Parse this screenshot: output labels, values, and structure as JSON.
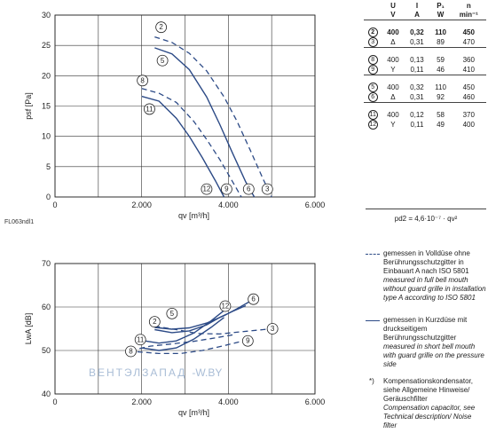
{
  "figure_code": "FL063ndl1",
  "watermark": {
    "name": "ВЕНТЭЛЗАПАД",
    "suffix": "-W.BY"
  },
  "table": {
    "headers": [
      "U",
      "I",
      "P₁",
      "n"
    ],
    "units": [
      "V",
      "A",
      "W",
      "min⁻¹"
    ],
    "groups": [
      [
        {
          "id": "2",
          "u": "400",
          "i": "0,32",
          "p": "110",
          "n": "450",
          "bold": true
        },
        {
          "id": "3",
          "u": "Δ",
          "i": "0,31",
          "p": "89",
          "n": "470",
          "bold": false
        }
      ],
      [
        {
          "id": "8",
          "u": "400",
          "i": "0,13",
          "p": "59",
          "n": "360",
          "bold": false
        },
        {
          "id": "9",
          "u": "Y",
          "i": "0,11",
          "p": "46",
          "n": "410",
          "bold": false
        }
      ],
      [
        {
          "id": "5",
          "u": "400",
          "i": "0,32",
          "p": "110",
          "n": "450",
          "bold": false
        },
        {
          "id": "6",
          "u": "Δ",
          "i": "0,31",
          "p": "92",
          "n": "460",
          "bold": false
        }
      ],
      [
        {
          "id": "11",
          "u": "400",
          "i": "0,12",
          "p": "58",
          "n": "370",
          "bold": false
        },
        {
          "id": "12",
          "u": "Y",
          "i": "0,11",
          "p": "49",
          "n": "400",
          "bold": false
        }
      ]
    ],
    "formula": "pd2 = 4,6·10⁻⁷ · qv²"
  },
  "legend": {
    "dashed": {
      "de": "gemessen in Volldüse ohne Berührungsschutzgitter in Einbauart A nach ISO 5801",
      "en": "measured in full bell mouth without guard grille in installation type A according to ISO 5801"
    },
    "solid": {
      "de": "gemessen in Kurzdüse mit druckseitigem Berührungsschutzgitter",
      "en": "measured in short bell mouth with guard grille on the pressure side"
    },
    "note": {
      "mark": "*)",
      "de": "Kompensationskondensator, siehe Allgemeine Hinweise/ Geräuschfilter",
      "en": "Compensation capacitor, see Technical description/ Noise filter"
    }
  },
  "chart_data": [
    {
      "type": "line",
      "xlabel": "qv [m³/h]",
      "ylabel": "psf [Pa]",
      "xlim": [
        0,
        6000
      ],
      "ylim": [
        0,
        30
      ],
      "xticks": [
        0,
        2000,
        4000,
        6000
      ],
      "xtick_labels": [
        "0",
        "2.000",
        "4.000",
        "6.000"
      ],
      "yticks": [
        0,
        5,
        10,
        15,
        20,
        25,
        30
      ],
      "grid": true,
      "series": [
        {
          "name": "2",
          "style": "dashed",
          "label_at": [
            2450,
            28
          ],
          "x": [
            2300,
            2700,
            3100,
            3500,
            3900,
            4200,
            4500,
            4800,
            5000
          ],
          "y": [
            26.4,
            25.5,
            23.7,
            20.8,
            16.5,
            12.5,
            7.8,
            3.0,
            0
          ]
        },
        {
          "name": "5",
          "style": "solid",
          "label_at": [
            2480,
            22.5
          ],
          "x": [
            2300,
            2700,
            3100,
            3500,
            3800,
            4100,
            4400,
            4600
          ],
          "y": [
            24.6,
            23.6,
            21.0,
            16.5,
            12.0,
            7.2,
            2.5,
            0
          ]
        },
        {
          "name": "8",
          "style": "dashed",
          "label_at": [
            2020,
            19.2
          ],
          "x": [
            2000,
            2400,
            2800,
            3200,
            3500,
            3800,
            4100,
            4300
          ],
          "y": [
            17.9,
            17.1,
            15.6,
            12.5,
            9.5,
            6.2,
            2.5,
            0
          ]
        },
        {
          "name": "11",
          "style": "solid",
          "label_at": [
            2180,
            14.5
          ],
          "x": [
            2000,
            2400,
            2800,
            3100,
            3400,
            3700,
            3900
          ],
          "y": [
            16.6,
            15.8,
            13.0,
            10.0,
            6.5,
            2.7,
            0
          ]
        },
        {
          "name": "3",
          "style": "endpoint",
          "label_at": [
            4900,
            1.3
          ]
        },
        {
          "name": "6",
          "style": "endpoint",
          "label_at": [
            4470,
            1.3
          ]
        },
        {
          "name": "9",
          "style": "endpoint",
          "label_at": [
            3960,
            1.3
          ]
        },
        {
          "name": "12",
          "style": "endpoint",
          "label_at": [
            3500,
            1.3
          ]
        }
      ]
    },
    {
      "type": "line",
      "xlabel": "qv [m³/h]",
      "ylabel": "LwA [dB]",
      "xlim": [
        0,
        6000
      ],
      "ylim": [
        40,
        70
      ],
      "xticks": [
        0,
        2000,
        4000,
        6000
      ],
      "xtick_labels": [
        "0",
        "2.000",
        "4.000",
        "6.000"
      ],
      "yticks": [
        40,
        50,
        60,
        70
      ],
      "grid": true,
      "series": [
        {
          "name": "6",
          "style": "solid",
          "label_at": [
            4580,
            61.8
          ],
          "x": [
            2300,
            2700,
            3100,
            3500,
            3900,
            4200,
            4500
          ],
          "y": [
            55.3,
            54.9,
            55.2,
            56.3,
            58.0,
            59.6,
            61.3
          ]
        },
        {
          "name": "5",
          "style": "solid",
          "label_at": [
            2700,
            58.5
          ],
          "x": [
            2300,
            2700,
            3100,
            3500,
            3800,
            4100,
            4400
          ],
          "y": [
            54.8,
            54.1,
            54.5,
            55.9,
            57.6,
            59.0,
            60.3
          ]
        },
        {
          "name": "12",
          "style": "solid",
          "label_at": [
            3930,
            60.2
          ],
          "x": [
            2000,
            2400,
            2800,
            3200,
            3600,
            3900
          ],
          "y": [
            52.3,
            51.7,
            52.2,
            54.0,
            56.8,
            59.2
          ]
        },
        {
          "name": "11",
          "style": "solid",
          "label_at": [
            1970,
            52.5
          ],
          "x": [
            2000,
            2400,
            2800,
            3200,
            3600,
            3900
          ],
          "y": [
            50.6,
            50.0,
            50.6,
            52.6,
            55.3,
            57.6
          ]
        },
        {
          "name": "3",
          "style": "dashed",
          "label_at": [
            5020,
            55.0
          ],
          "x": [
            2300,
            2800,
            3300,
            3800,
            4300,
            4800,
            5000
          ],
          "y": [
            55.6,
            54.8,
            53.9,
            53.8,
            54.3,
            54.8,
            55.0
          ]
        },
        {
          "name": "9",
          "style": "dashed",
          "label_at": [
            4450,
            52.2
          ],
          "x": [
            1900,
            2400,
            2900,
            3400,
            3900,
            4300
          ],
          "y": [
            49.7,
            49.3,
            49.3,
            50.0,
            51.1,
            52.1
          ]
        },
        {
          "name": "8",
          "style": "dashed",
          "label_at": [
            1750,
            49.8
          ],
          "x": [
            1750,
            2200,
            2700,
            3200,
            3700,
            4100
          ],
          "y": [
            50.0,
            51.0,
            51.5,
            52.1,
            52.9,
            53.6
          ]
        },
        {
          "name": "2",
          "style": "marker",
          "label_at": [
            2300,
            56.6
          ]
        }
      ]
    }
  ]
}
